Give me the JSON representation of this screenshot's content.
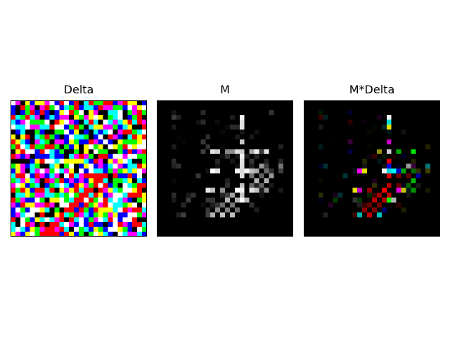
{
  "figure": {
    "panels": [
      {
        "id": "delta",
        "title": "Delta"
      },
      {
        "id": "mask",
        "title": "M"
      },
      {
        "id": "masked",
        "title": "M*Delta"
      }
    ],
    "grid_size": 28,
    "delta_palette": [
      "#ffffff",
      "#ff0000",
      "#00ff00",
      "#0000ff",
      "#00ffff",
      "#ff00ff",
      "#ffff00",
      "#000000"
    ]
  }
}
